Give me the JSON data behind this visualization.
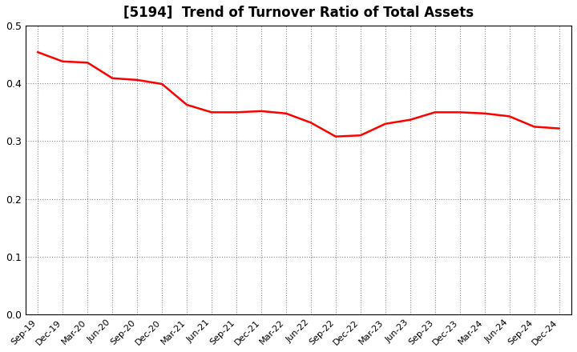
{
  "title": "[5194]  Trend of Turnover Ratio of Total Assets",
  "title_fontsize": 12,
  "line_color": "#FF0000",
  "line_width": 1.8,
  "background_color": "#FFFFFF",
  "grid_color": "#888888",
  "ylim": [
    0.0,
    0.5
  ],
  "yticks": [
    0.0,
    0.1,
    0.2,
    0.3,
    0.4,
    0.5
  ],
  "x_labels": [
    "Sep-19",
    "Dec-19",
    "Mar-20",
    "Jun-20",
    "Sep-20",
    "Dec-20",
    "Mar-21",
    "Jun-21",
    "Sep-21",
    "Dec-21",
    "Mar-22",
    "Jun-22",
    "Sep-22",
    "Dec-22",
    "Mar-23",
    "Jun-23",
    "Sep-23",
    "Dec-23",
    "Mar-24",
    "Jun-24",
    "Sep-24",
    "Dec-24"
  ],
  "values": [
    0.454,
    0.438,
    0.436,
    0.409,
    0.406,
    0.399,
    0.363,
    0.35,
    0.35,
    0.352,
    0.348,
    0.332,
    0.308,
    0.31,
    0.33,
    0.337,
    0.35,
    0.35,
    0.348,
    0.343,
    0.325,
    0.322
  ]
}
